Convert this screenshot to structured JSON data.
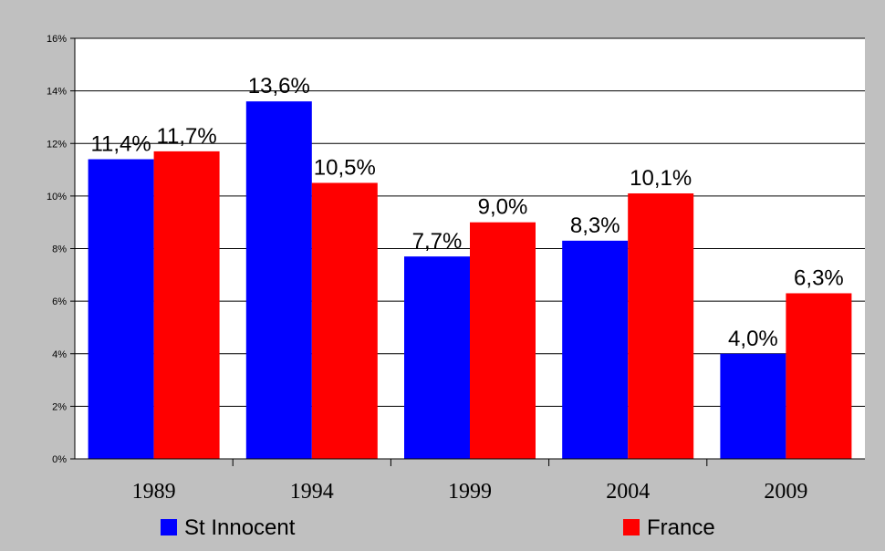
{
  "chart_data": {
    "type": "bar",
    "categories": [
      "1989",
      "1994",
      "1999",
      "2004",
      "2009"
    ],
    "series": [
      {
        "name": "St Innocent",
        "color": "#0000FF",
        "values": [
          11.4,
          13.6,
          7.7,
          8.3,
          4.0
        ],
        "labels": [
          "11,4%",
          "13,6%",
          "7,7%",
          "8,3%",
          "4,0%"
        ]
      },
      {
        "name": "France",
        "color": "#FF0000",
        "values": [
          11.7,
          10.5,
          9.0,
          10.1,
          6.3
        ],
        "labels": [
          "11,7%",
          "10,5%",
          "9,0%",
          "10,1%",
          "6,3%"
        ]
      }
    ],
    "ylim": [
      0,
      16
    ],
    "yticks": [
      "0%",
      "2%",
      "4%",
      "6%",
      "8%",
      "10%",
      "12%",
      "14%",
      "16%"
    ],
    "grid": true,
    "legend_position": "bottom",
    "colors": {
      "background": "#C0C0C0",
      "plot_area": "#FFFFFF",
      "gridline": "#000000"
    }
  }
}
